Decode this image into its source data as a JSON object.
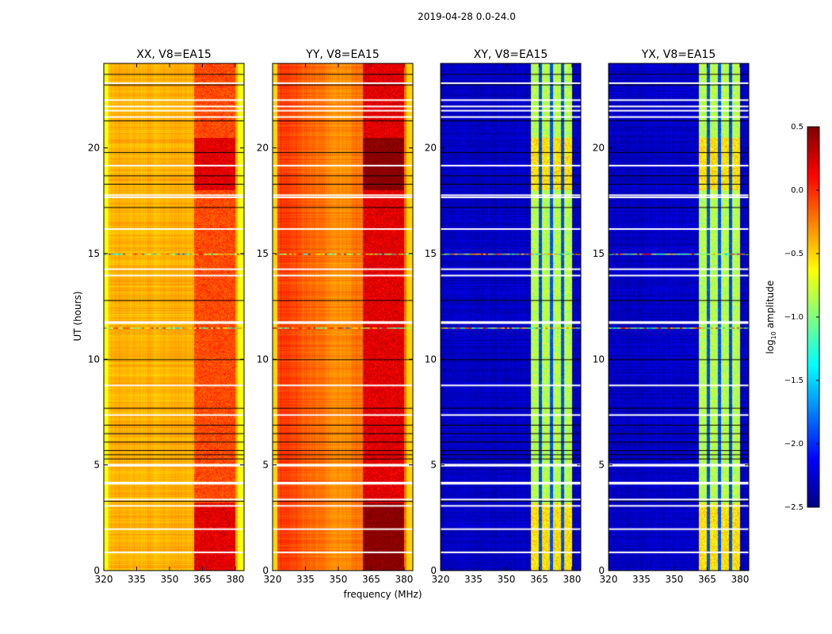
{
  "chart_data": {
    "type": "heatmap",
    "suptitle": "2019-04-28 0.0-24.0",
    "xlabel": "frequency (MHz)",
    "ylabel": "UT (hours)",
    "xlim": [
      320,
      384
    ],
    "ylim": [
      0,
      24
    ],
    "xticks": [
      320,
      335,
      350,
      365,
      380
    ],
    "yticks": [
      0,
      5,
      10,
      15,
      20
    ],
    "panels": [
      {
        "title": "XX, V8=EA15",
        "base": -0.4,
        "band_level": -0.15,
        "edge_level": -0.65
      },
      {
        "title": "YY, V8=EA15",
        "base": -0.2,
        "band_level": 0.15,
        "edge_level": -0.5
      },
      {
        "title": "XY, V8=EA15",
        "base": -2.3,
        "band_level": -0.9,
        "edge_level": -2.3
      },
      {
        "title": "YX, V8=EA15",
        "base": -2.3,
        "band_level": -0.9,
        "edge_level": -2.3
      }
    ],
    "band_mhz": [
      361,
      380
    ],
    "band_gaps_mhz": [
      365.4,
      370.4,
      375.5
    ],
    "flagged_hours_white": [
      0.9,
      2.0,
      3.1,
      3.4,
      4.15,
      4.2,
      5.0,
      5.05,
      7.4,
      8.8,
      11.75,
      11.8,
      14.0,
      14.3,
      16.2,
      17.7,
      17.8,
      19.2,
      21.5,
      21.8,
      22.0,
      22.3,
      23.1
    ],
    "flagged_hours_black": [
      3.3,
      5.3,
      5.5,
      5.7,
      6.1,
      6.5,
      6.9,
      7.7,
      10.0,
      12.8,
      17.2,
      18.3,
      18.7,
      19.8,
      21.3,
      23.0,
      23.5
    ],
    "rfi_hours": [
      15.0,
      11.5
    ],
    "colorbar": {
      "label": "log10 amplitude",
      "vmin": -2.5,
      "vmax": 0.5,
      "ticks": [
        "0.5",
        "0.0",
        "−0.5",
        "−1.0",
        "−1.5",
        "−2.0",
        "−2.5"
      ],
      "colormap": "jet"
    }
  }
}
